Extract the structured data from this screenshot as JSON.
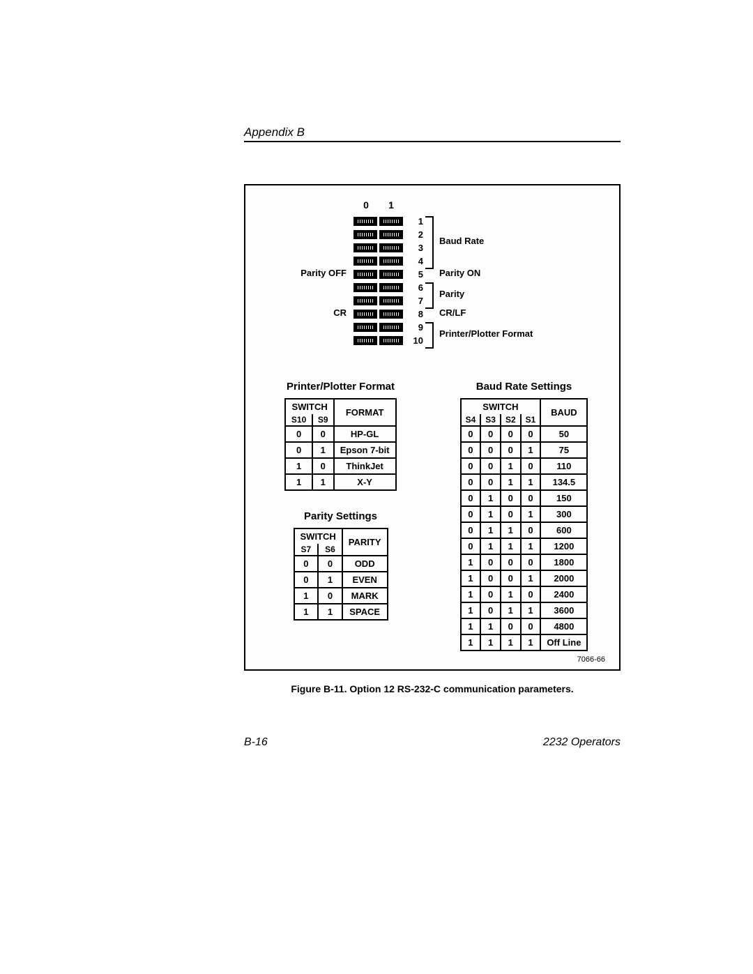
{
  "header": {
    "appendix": "Appendix B"
  },
  "dip": {
    "col0": "0",
    "col1": "1",
    "rows": [
      "1",
      "2",
      "3",
      "4",
      "5",
      "6",
      "7",
      "8",
      "9",
      "10"
    ],
    "left": {
      "parity_off": "Parity OFF",
      "cr": "CR"
    },
    "right": {
      "baud_rate": "Baud Rate",
      "parity_on": "Parity ON",
      "parity": "Parity",
      "crlf": "CR/LF",
      "pp_format": "Printer/Plotter Format"
    }
  },
  "format_table": {
    "title": "Printer/Plotter Format",
    "switch_label": "SWITCH",
    "s10": "S10",
    "s9": "S9",
    "format_label": "FORMAT",
    "rows": [
      {
        "s10": "0",
        "s9": "0",
        "fmt": "HP-GL"
      },
      {
        "s10": "0",
        "s9": "1",
        "fmt": "Epson 7-bit"
      },
      {
        "s10": "1",
        "s9": "0",
        "fmt": "ThinkJet"
      },
      {
        "s10": "1",
        "s9": "1",
        "fmt": "X-Y"
      }
    ]
  },
  "parity_table": {
    "title": "Parity Settings",
    "switch_label": "SWITCH",
    "s7": "S7",
    "s6": "S6",
    "parity_label": "PARITY",
    "rows": [
      {
        "s7": "0",
        "s6": "0",
        "p": "ODD"
      },
      {
        "s7": "0",
        "s6": "1",
        "p": "EVEN"
      },
      {
        "s7": "1",
        "s6": "0",
        "p": "MARK"
      },
      {
        "s7": "1",
        "s6": "1",
        "p": "SPACE"
      }
    ]
  },
  "baud_table": {
    "title": "Baud Rate Settings",
    "switch_label": "SWITCH",
    "s4": "S4",
    "s3": "S3",
    "s2": "S2",
    "s1": "S1",
    "baud_label": "BAUD",
    "rows": [
      {
        "s4": "0",
        "s3": "0",
        "s2": "0",
        "s1": "0",
        "b": "50"
      },
      {
        "s4": "0",
        "s3": "0",
        "s2": "0",
        "s1": "1",
        "b": "75"
      },
      {
        "s4": "0",
        "s3": "0",
        "s2": "1",
        "s1": "0",
        "b": "110"
      },
      {
        "s4": "0",
        "s3": "0",
        "s2": "1",
        "s1": "1",
        "b": "134.5"
      },
      {
        "s4": "0",
        "s3": "1",
        "s2": "0",
        "s1": "0",
        "b": "150"
      },
      {
        "s4": "0",
        "s3": "1",
        "s2": "0",
        "s1": "1",
        "b": "300"
      },
      {
        "s4": "0",
        "s3": "1",
        "s2": "1",
        "s1": "0",
        "b": "600"
      },
      {
        "s4": "0",
        "s3": "1",
        "s2": "1",
        "s1": "1",
        "b": "1200"
      },
      {
        "s4": "1",
        "s3": "0",
        "s2": "0",
        "s1": "0",
        "b": "1800"
      },
      {
        "s4": "1",
        "s3": "0",
        "s2": "0",
        "s1": "1",
        "b": "2000"
      },
      {
        "s4": "1",
        "s3": "0",
        "s2": "1",
        "s1": "0",
        "b": "2400"
      },
      {
        "s4": "1",
        "s3": "0",
        "s2": "1",
        "s1": "1",
        "b": "3600"
      },
      {
        "s4": "1",
        "s3": "1",
        "s2": "0",
        "s1": "0",
        "b": "4800"
      },
      {
        "s4": "1",
        "s3": "1",
        "s2": "1",
        "s1": "1",
        "b": "Off Line"
      }
    ]
  },
  "figure_id": "7066-66",
  "caption": "Figure B-11. Option 12 RS-232-C communication parameters.",
  "footer": {
    "page": "B-16",
    "doc": "2232 Operators"
  }
}
